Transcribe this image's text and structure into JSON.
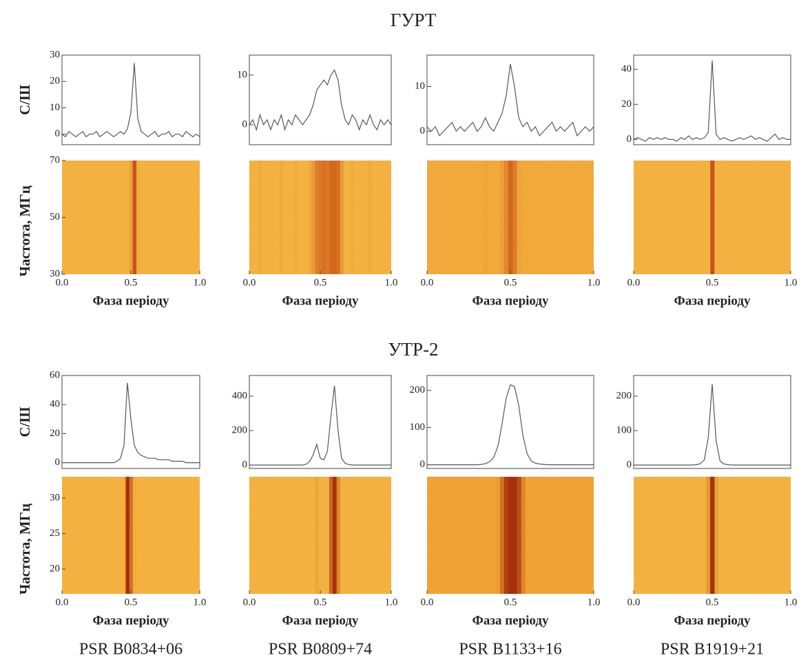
{
  "sections": [
    "ГУРТ",
    "УТР-2"
  ],
  "pulsars": [
    "PSR B0834+06",
    "PSR B0809+74",
    "PSR B1133+16",
    "PSR B1919+21"
  ],
  "chart_data": [
    {
      "type": "line",
      "ylabel": "С/Ш",
      "color": "#555555",
      "xlim": [
        0,
        1
      ],
      "ylim": [
        -4,
        30
      ],
      "yticks": [
        0,
        10,
        20,
        30
      ],
      "x": [
        0,
        0.025,
        0.05,
        0.075,
        0.1,
        0.125,
        0.15,
        0.175,
        0.2,
        0.225,
        0.25,
        0.275,
        0.3,
        0.325,
        0.35,
        0.375,
        0.4,
        0.425,
        0.45,
        0.475,
        0.5,
        0.525,
        0.55,
        0.575,
        0.6,
        0.625,
        0.65,
        0.675,
        0.7,
        0.725,
        0.75,
        0.775,
        0.8,
        0.825,
        0.85,
        0.875,
        0.9,
        0.925,
        0.95,
        0.975,
        1
      ],
      "values": [
        0,
        -1,
        1,
        0,
        -1,
        0,
        1,
        -1,
        0,
        0,
        1,
        -1,
        0,
        1,
        0,
        -1,
        0,
        1,
        0,
        2,
        8,
        27,
        6,
        1,
        0,
        -1,
        0,
        1,
        -1,
        0,
        0,
        1,
        -1,
        0,
        0,
        -1,
        1,
        0,
        -1,
        0,
        -1
      ]
    },
    {
      "type": "line",
      "color": "#555555",
      "xlim": [
        0,
        1
      ],
      "ylim": [
        -4,
        14
      ],
      "yticks": [
        0,
        10
      ],
      "x": [
        0,
        0.025,
        0.05,
        0.075,
        0.1,
        0.125,
        0.15,
        0.175,
        0.2,
        0.225,
        0.25,
        0.275,
        0.3,
        0.325,
        0.35,
        0.375,
        0.4,
        0.425,
        0.45,
        0.475,
        0.5,
        0.525,
        0.55,
        0.575,
        0.6,
        0.625,
        0.65,
        0.675,
        0.7,
        0.725,
        0.75,
        0.775,
        0.8,
        0.825,
        0.85,
        0.875,
        0.9,
        0.925,
        0.95,
        0.975,
        1
      ],
      "values": [
        0,
        1,
        -1,
        2,
        0,
        1,
        -1,
        1,
        0,
        2,
        -1,
        1,
        0,
        2,
        1,
        0,
        1,
        2,
        4,
        7,
        8,
        9,
        8,
        10,
        11,
        9,
        4,
        1,
        0,
        2,
        1,
        -1,
        1,
        0,
        2,
        0,
        -1,
        1,
        0,
        1,
        0
      ]
    },
    {
      "type": "line",
      "color": "#555555",
      "xlim": [
        0,
        1
      ],
      "ylim": [
        -3,
        17
      ],
      "yticks": [
        0,
        10
      ],
      "x": [
        0,
        0.025,
        0.05,
        0.075,
        0.1,
        0.125,
        0.15,
        0.175,
        0.2,
        0.225,
        0.25,
        0.275,
        0.3,
        0.325,
        0.35,
        0.375,
        0.4,
        0.425,
        0.45,
        0.475,
        0.5,
        0.525,
        0.55,
        0.575,
        0.6,
        0.625,
        0.65,
        0.675,
        0.7,
        0.725,
        0.75,
        0.775,
        0.8,
        0.825,
        0.85,
        0.875,
        0.9,
        0.925,
        0.95,
        0.975,
        1
      ],
      "values": [
        1,
        0,
        1,
        -1,
        0,
        1,
        2,
        0,
        1,
        0,
        1,
        2,
        0,
        1,
        3,
        1,
        0,
        2,
        4,
        8,
        15,
        10,
        3,
        1,
        2,
        0,
        1,
        -1,
        0,
        1,
        2,
        0,
        1,
        0,
        1,
        2,
        -1,
        0,
        1,
        0,
        1
      ]
    },
    {
      "type": "line",
      "color": "#555555",
      "xlim": [
        0,
        1
      ],
      "ylim": [
        -3,
        48
      ],
      "yticks": [
        0,
        20,
        40
      ],
      "x": [
        0,
        0.025,
        0.05,
        0.075,
        0.1,
        0.125,
        0.15,
        0.175,
        0.2,
        0.225,
        0.25,
        0.275,
        0.3,
        0.325,
        0.35,
        0.375,
        0.4,
        0.425,
        0.45,
        0.475,
        0.5,
        0.525,
        0.55,
        0.575,
        0.6,
        0.625,
        0.65,
        0.675,
        0.7,
        0.725,
        0.75,
        0.775,
        0.8,
        0.825,
        0.85,
        0.875,
        0.9,
        0.925,
        0.95,
        0.975,
        1
      ],
      "values": [
        0,
        1,
        0,
        -1,
        1,
        0,
        1,
        0,
        1,
        0,
        0,
        -1,
        1,
        0,
        2,
        0,
        1,
        0,
        1,
        4,
        45,
        3,
        0,
        1,
        0,
        -1,
        0,
        1,
        0,
        1,
        2,
        0,
        1,
        0,
        -1,
        1,
        3,
        0,
        1,
        0,
        0
      ]
    },
    {
      "type": "spectrum",
      "ylabel": "Частота, МГц",
      "xlabel": "Фаза періоду",
      "color": "#c8561c",
      "background": "#f4b23e",
      "xlim": [
        0,
        1
      ],
      "ylim": [
        30,
        70
      ],
      "yticks": [
        30,
        50,
        70
      ],
      "xticks": [
        {
          "value": 0,
          "label": "0.0"
        },
        {
          "value": 0.5,
          "label": "0.5"
        },
        {
          "value": 1,
          "label": "1.0"
        }
      ]
    },
    {
      "type": "spectrum",
      "xlabel": "Фаза періоду",
      "color": "#d2681e",
      "background": "#f4b23e",
      "xlim": [
        0,
        1
      ],
      "xticks": [
        {
          "value": 0,
          "label": "0.0"
        },
        {
          "value": 0.5,
          "label": "0.5"
        },
        {
          "value": 1,
          "label": "1.0"
        }
      ]
    },
    {
      "type": "spectrum",
      "xlabel": "Фаза періоду",
      "color": "#d2681e",
      "background": "#f2a838",
      "xlim": [
        0,
        1
      ],
      "xticks": [
        {
          "value": 0,
          "label": "0.0"
        },
        {
          "value": 0.5,
          "label": "0.5"
        },
        {
          "value": 1,
          "label": "1.0"
        }
      ]
    },
    {
      "type": "spectrum",
      "xlabel": "Фаза періоду",
      "color": "#c8561c",
      "background": "#f4b23e",
      "xlim": [
        0,
        1
      ],
      "xticks": [
        {
          "value": 0,
          "label": "0.0"
        },
        {
          "value": 0.5,
          "label": "0.5"
        },
        {
          "value": 1,
          "label": "1.0"
        }
      ]
    },
    {
      "type": "line",
      "ylabel": "С/Ш",
      "color": "#555555",
      "xlim": [
        0,
        1
      ],
      "ylim": [
        -4,
        60
      ],
      "yticks": [
        0,
        20,
        40,
        60
      ],
      "x": [
        0,
        0.025,
        0.05,
        0.075,
        0.1,
        0.125,
        0.15,
        0.175,
        0.2,
        0.225,
        0.25,
        0.275,
        0.3,
        0.325,
        0.35,
        0.375,
        0.4,
        0.425,
        0.45,
        0.475,
        0.5,
        0.525,
        0.55,
        0.575,
        0.6,
        0.625,
        0.65,
        0.675,
        0.7,
        0.725,
        0.75,
        0.775,
        0.8,
        0.825,
        0.85,
        0.875,
        0.9,
        0.925,
        0.95,
        0.975,
        1
      ],
      "values": [
        0,
        0,
        0,
        0,
        0,
        0,
        0,
        0,
        0,
        0,
        0,
        0,
        0,
        0,
        0,
        0,
        1,
        3,
        12,
        55,
        30,
        12,
        7,
        5,
        4,
        3,
        3,
        3,
        2,
        2,
        2,
        2,
        1,
        1,
        1,
        1,
        0,
        0,
        0,
        0,
        0
      ]
    },
    {
      "type": "line",
      "color": "#555555",
      "xlim": [
        0,
        1
      ],
      "ylim": [
        -20,
        520
      ],
      "yticks": [
        0,
        200,
        400
      ],
      "x": [
        0,
        0.025,
        0.05,
        0.075,
        0.1,
        0.125,
        0.15,
        0.175,
        0.2,
        0.225,
        0.25,
        0.275,
        0.3,
        0.325,
        0.35,
        0.375,
        0.4,
        0.425,
        0.45,
        0.475,
        0.5,
        0.525,
        0.55,
        0.575,
        0.6,
        0.625,
        0.65,
        0.675,
        0.7,
        0.725,
        0.75,
        0.775,
        0.8,
        0.825,
        0.85,
        0.875,
        0.9,
        0.925,
        0.95,
        0.975,
        1
      ],
      "values": [
        0,
        0,
        0,
        0,
        0,
        0,
        0,
        0,
        0,
        0,
        0,
        0,
        0,
        0,
        0,
        0,
        5,
        20,
        60,
        120,
        40,
        30,
        80,
        280,
        460,
        200,
        40,
        10,
        3,
        0,
        0,
        0,
        0,
        0,
        0,
        0,
        0,
        0,
        0,
        0,
        0
      ]
    },
    {
      "type": "line",
      "color": "#555555",
      "xlim": [
        0,
        1
      ],
      "ylim": [
        -10,
        240
      ],
      "yticks": [
        0,
        100,
        200
      ],
      "x": [
        0,
        0.025,
        0.05,
        0.075,
        0.1,
        0.125,
        0.15,
        0.175,
        0.2,
        0.225,
        0.25,
        0.275,
        0.3,
        0.325,
        0.35,
        0.375,
        0.4,
        0.425,
        0.45,
        0.475,
        0.5,
        0.525,
        0.55,
        0.575,
        0.6,
        0.625,
        0.65,
        0.675,
        0.7,
        0.725,
        0.75,
        0.775,
        0.8,
        0.825,
        0.85,
        0.875,
        0.9,
        0.925,
        0.95,
        0.975,
        1
      ],
      "values": [
        0,
        0,
        0,
        0,
        0,
        0,
        0,
        0,
        0,
        0,
        0,
        0,
        0,
        1,
        3,
        8,
        20,
        50,
        110,
        180,
        215,
        210,
        160,
        80,
        30,
        10,
        4,
        2,
        1,
        0,
        0,
        0,
        0,
        0,
        0,
        0,
        0,
        0,
        0,
        0,
        0
      ]
    },
    {
      "type": "line",
      "color": "#555555",
      "xlim": [
        0,
        1
      ],
      "ylim": [
        -10,
        260
      ],
      "yticks": [
        0,
        100,
        200
      ],
      "x": [
        0,
        0.025,
        0.05,
        0.075,
        0.1,
        0.125,
        0.15,
        0.175,
        0.2,
        0.225,
        0.25,
        0.275,
        0.3,
        0.325,
        0.35,
        0.375,
        0.4,
        0.425,
        0.45,
        0.475,
        0.5,
        0.525,
        0.55,
        0.575,
        0.6,
        0.625,
        0.65,
        0.675,
        0.7,
        0.725,
        0.75,
        0.775,
        0.8,
        0.825,
        0.85,
        0.875,
        0.9,
        0.925,
        0.95,
        0.975,
        1
      ],
      "values": [
        0,
        0,
        0,
        0,
        0,
        0,
        0,
        0,
        0,
        0,
        0,
        0,
        0,
        0,
        0,
        0,
        1,
        4,
        15,
        80,
        235,
        70,
        12,
        3,
        1,
        0,
        0,
        0,
        0,
        0,
        0,
        0,
        0,
        0,
        0,
        0,
        0,
        0,
        0,
        0,
        0
      ]
    },
    {
      "type": "spectrum",
      "ylabel": "Частота, МГц",
      "xlabel": "Фаза періоду",
      "color": "#a8300c",
      "background": "#f4b23e",
      "xlim": [
        0,
        1
      ],
      "ylim": [
        16.5,
        33
      ],
      "yticks": [
        20,
        25,
        30
      ],
      "xticks": [
        {
          "value": 0,
          "label": "0.0"
        },
        {
          "value": 0.5,
          "label": "0.5"
        },
        {
          "value": 1,
          "label": "1.0"
        }
      ]
    },
    {
      "type": "spectrum",
      "xlabel": "Фаза періоду",
      "color": "#a8300c",
      "background": "#f4b23e",
      "xlim": [
        0,
        1
      ],
      "xticks": [
        {
          "value": 0,
          "label": "0.0"
        },
        {
          "value": 0.5,
          "label": "0.5"
        },
        {
          "value": 1,
          "label": "1.0"
        }
      ]
    },
    {
      "type": "spectrum",
      "xlabel": "Фаза періоду",
      "color": "#a8300c",
      "background": "#f0a030",
      "xlim": [
        0,
        1
      ],
      "xticks": [
        {
          "value": 0,
          "label": "0.0"
        },
        {
          "value": 0.5,
          "label": "0.5"
        },
        {
          "value": 1,
          "label": "1.0"
        }
      ]
    },
    {
      "type": "spectrum",
      "xlabel": "Фаза періоду",
      "color": "#a8300c",
      "background": "#f4b23e",
      "xlim": [
        0,
        1
      ],
      "xticks": [
        {
          "value": 0,
          "label": "0.0"
        },
        {
          "value": 0.5,
          "label": "0.5"
        },
        {
          "value": 1,
          "label": "1.0"
        }
      ]
    }
  ]
}
